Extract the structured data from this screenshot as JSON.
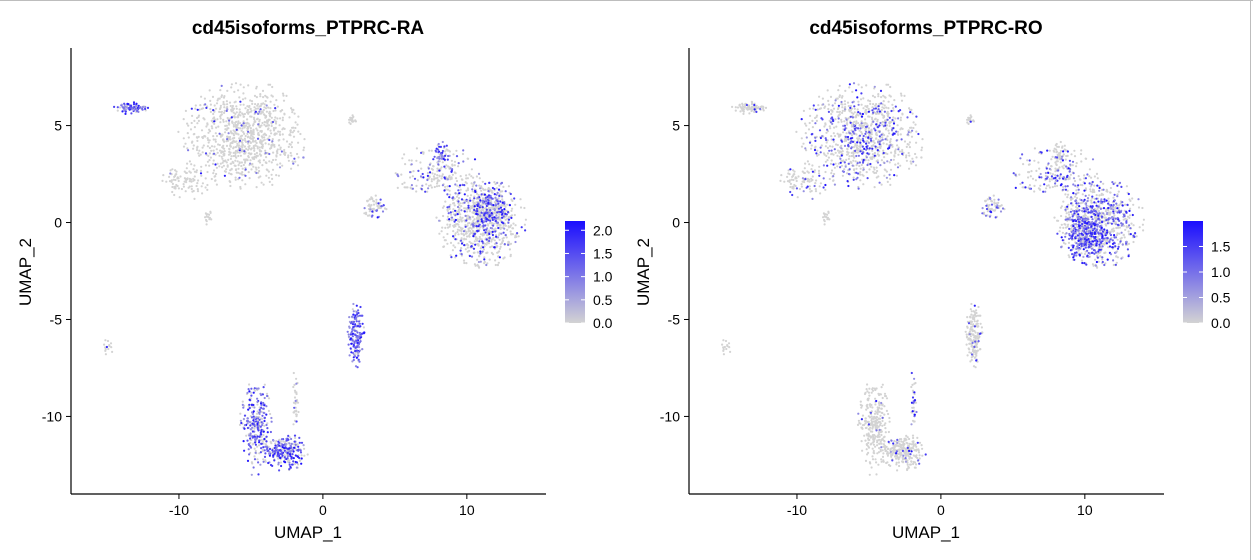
{
  "chart_data": [
    {
      "type": "scatter",
      "title": "cd45isoforms_PTPRC-RA",
      "xlabel": "UMAP_1",
      "ylabel": "UMAP_2",
      "xlim": [
        -17.5,
        15.5
      ],
      "ylim": [
        -14,
        9
      ],
      "xticks": [
        -10,
        0,
        10
      ],
      "xtick_labels": [
        "-10",
        "0",
        "10"
      ],
      "yticks": [
        5,
        0,
        -5,
        -10
      ],
      "ytick_labels": [
        "5",
        "0",
        "-5",
        "-10"
      ],
      "color_scale": {
        "low": "#d3d3d3",
        "high": "#1a0dff",
        "min": 0,
        "max": 2.2,
        "ticks": [
          "2.0",
          "1.5",
          "1.0",
          "0.5",
          "0.0"
        ],
        "tick_values": [
          2.0,
          1.5,
          1.0,
          0.5,
          0.0
        ]
      },
      "clusters": [
        {
          "cx": -5.5,
          "cy": 4.5,
          "rx": 4.0,
          "ry": 2.5,
          "n": 900,
          "expr": 0.05
        },
        {
          "cx": -13.3,
          "cy": 5.9,
          "rx": 1.1,
          "ry": 0.3,
          "n": 80,
          "expr": 0.8
        },
        {
          "cx": -9.5,
          "cy": 2.2,
          "rx": 1.8,
          "ry": 0.9,
          "n": 90,
          "expr": 0.03
        },
        {
          "cx": -8.0,
          "cy": 0.3,
          "rx": 0.4,
          "ry": 0.5,
          "n": 15,
          "expr": 0.0
        },
        {
          "cx": -3.8,
          "cy": 5.2,
          "rx": 0.4,
          "ry": 0.5,
          "n": 20,
          "expr": 0.0
        },
        {
          "cx": 2.0,
          "cy": 5.3,
          "rx": 0.4,
          "ry": 0.25,
          "n": 18,
          "expr": 0.05
        },
        {
          "cx": 8.0,
          "cy": 2.5,
          "rx": 3.0,
          "ry": 1.3,
          "n": 200,
          "expr": 0.25
        },
        {
          "cx": 8.2,
          "cy": 3.5,
          "rx": 0.6,
          "ry": 0.6,
          "n": 50,
          "expr": 0.7
        },
        {
          "cx": 3.6,
          "cy": 0.8,
          "rx": 0.8,
          "ry": 0.6,
          "n": 60,
          "expr": 0.3
        },
        {
          "cx": 11.0,
          "cy": 0.0,
          "rx": 2.8,
          "ry": 2.1,
          "n": 750,
          "expr": 0.2
        },
        {
          "cx": 11.5,
          "cy": 0.7,
          "rx": 1.5,
          "ry": 1.2,
          "n": 250,
          "expr": 0.55
        },
        {
          "cx": 2.3,
          "cy": -5.8,
          "rx": 0.55,
          "ry": 1.6,
          "n": 170,
          "expr": 0.8
        },
        {
          "cx": -4.6,
          "cy": -10.6,
          "rx": 1.1,
          "ry": 2.2,
          "n": 280,
          "expr": 0.6
        },
        {
          "cx": -2.6,
          "cy": -11.8,
          "rx": 1.4,
          "ry": 0.9,
          "n": 240,
          "expr": 0.6
        },
        {
          "cx": -1.9,
          "cy": -9.3,
          "rx": 0.25,
          "ry": 1.5,
          "n": 35,
          "expr": 0.1
        },
        {
          "cx": -15.0,
          "cy": -6.5,
          "rx": 0.4,
          "ry": 0.5,
          "n": 15,
          "expr": 0.05
        }
      ]
    },
    {
      "type": "scatter",
      "title": "cd45isoforms_PTPRC-RO",
      "xlabel": "UMAP_1",
      "ylabel": "UMAP_2",
      "xlim": [
        -17.5,
        15.5
      ],
      "ylim": [
        -14,
        9
      ],
      "xticks": [
        -10,
        0,
        10
      ],
      "xtick_labels": [
        "-10",
        "0",
        "10"
      ],
      "yticks": [
        5,
        0,
        -5,
        -10
      ],
      "ytick_labels": [
        "5",
        "0",
        "-5",
        "-10"
      ],
      "color_scale": {
        "low": "#d3d3d3",
        "high": "#1a0dff",
        "min": 0,
        "max": 2.0,
        "ticks": [
          "1.5",
          "1.0",
          "0.5",
          "0.0"
        ],
        "tick_values": [
          1.5,
          1.0,
          0.5,
          0.0
        ]
      },
      "clusters": [
        {
          "cx": -5.5,
          "cy": 4.5,
          "rx": 4.0,
          "ry": 2.5,
          "n": 900,
          "expr": 0.25
        },
        {
          "cx": -13.3,
          "cy": 5.9,
          "rx": 1.1,
          "ry": 0.3,
          "n": 80,
          "expr": 0.05
        },
        {
          "cx": -9.5,
          "cy": 2.2,
          "rx": 1.8,
          "ry": 0.9,
          "n": 90,
          "expr": 0.2
        },
        {
          "cx": -8.0,
          "cy": 0.3,
          "rx": 0.4,
          "ry": 0.5,
          "n": 15,
          "expr": 0.0
        },
        {
          "cx": -3.8,
          "cy": 5.2,
          "rx": 0.4,
          "ry": 0.5,
          "n": 20,
          "expr": 0.0
        },
        {
          "cx": 2.0,
          "cy": 5.3,
          "rx": 0.4,
          "ry": 0.25,
          "n": 18,
          "expr": 0.1
        },
        {
          "cx": 8.0,
          "cy": 2.5,
          "rx": 3.0,
          "ry": 1.3,
          "n": 200,
          "expr": 0.3
        },
        {
          "cx": 8.2,
          "cy": 3.5,
          "rx": 0.6,
          "ry": 0.6,
          "n": 50,
          "expr": 0.05
        },
        {
          "cx": 3.6,
          "cy": 0.8,
          "rx": 0.8,
          "ry": 0.6,
          "n": 60,
          "expr": 0.4
        },
        {
          "cx": 11.0,
          "cy": 0.0,
          "rx": 2.8,
          "ry": 2.1,
          "n": 750,
          "expr": 0.4
        },
        {
          "cx": 10.0,
          "cy": -0.6,
          "rx": 1.6,
          "ry": 1.4,
          "n": 300,
          "expr": 0.7
        },
        {
          "cx": 2.3,
          "cy": -5.8,
          "rx": 0.55,
          "ry": 1.6,
          "n": 170,
          "expr": 0.08
        },
        {
          "cx": -4.6,
          "cy": -10.6,
          "rx": 1.1,
          "ry": 2.2,
          "n": 280,
          "expr": 0.05
        },
        {
          "cx": -2.6,
          "cy": -11.8,
          "rx": 1.4,
          "ry": 0.9,
          "n": 240,
          "expr": 0.08
        },
        {
          "cx": -1.9,
          "cy": -9.3,
          "rx": 0.25,
          "ry": 1.5,
          "n": 35,
          "expr": 0.3
        },
        {
          "cx": -15.0,
          "cy": -6.5,
          "rx": 0.4,
          "ry": 0.5,
          "n": 15,
          "expr": 0.05
        }
      ]
    }
  ]
}
